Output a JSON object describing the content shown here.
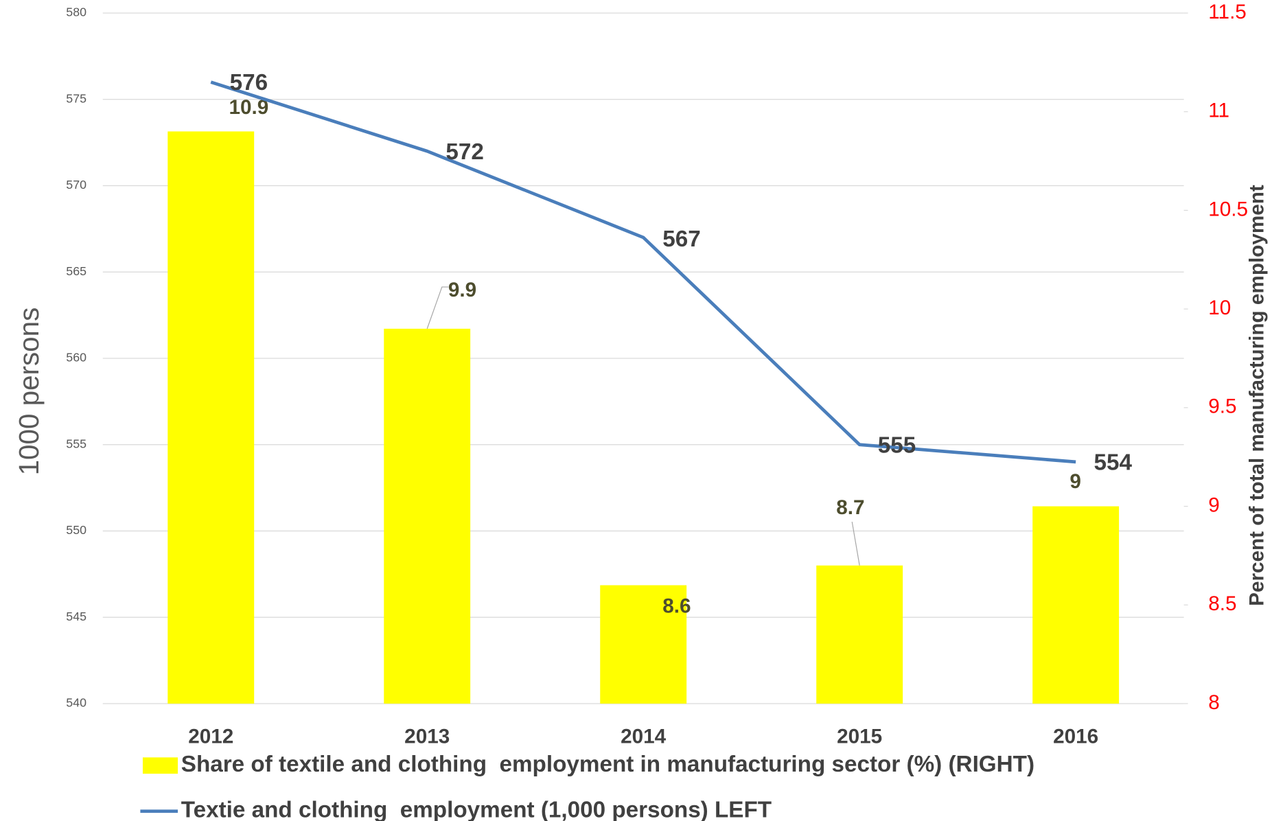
{
  "chart_data": {
    "type": "bar",
    "categories": [
      "2012",
      "2013",
      "2014",
      "2015",
      "2016"
    ],
    "series": [
      {
        "name": "Share of textile and clothing  employment in manufacturing sector (%) (RIGHT)",
        "type": "bar",
        "color": "#ffff00",
        "axis": "y2",
        "values": [
          10.9,
          9.9,
          8.6,
          8.7,
          9
        ]
      },
      {
        "name": "Textie and clothing  employment (1,000 persons) LEFT",
        "type": "line",
        "color": "#4a7ebb",
        "axis": "y",
        "values": [
          576,
          572,
          567,
          555,
          554
        ]
      }
    ],
    "ylabel": "1000 persons",
    "y2label": "Percent of  total  manufacturing employment",
    "ylim": [
      540,
      580
    ],
    "yticks": [
      540,
      545,
      550,
      555,
      560,
      565,
      570,
      575,
      580
    ],
    "y2lim": [
      8,
      11.5
    ],
    "y2ticks": [
      8,
      8.5,
      9,
      9.5,
      10,
      10.5,
      11,
      11.5
    ],
    "y2tick_color": "#ff0000",
    "grid": true,
    "legend": "bottom"
  }
}
